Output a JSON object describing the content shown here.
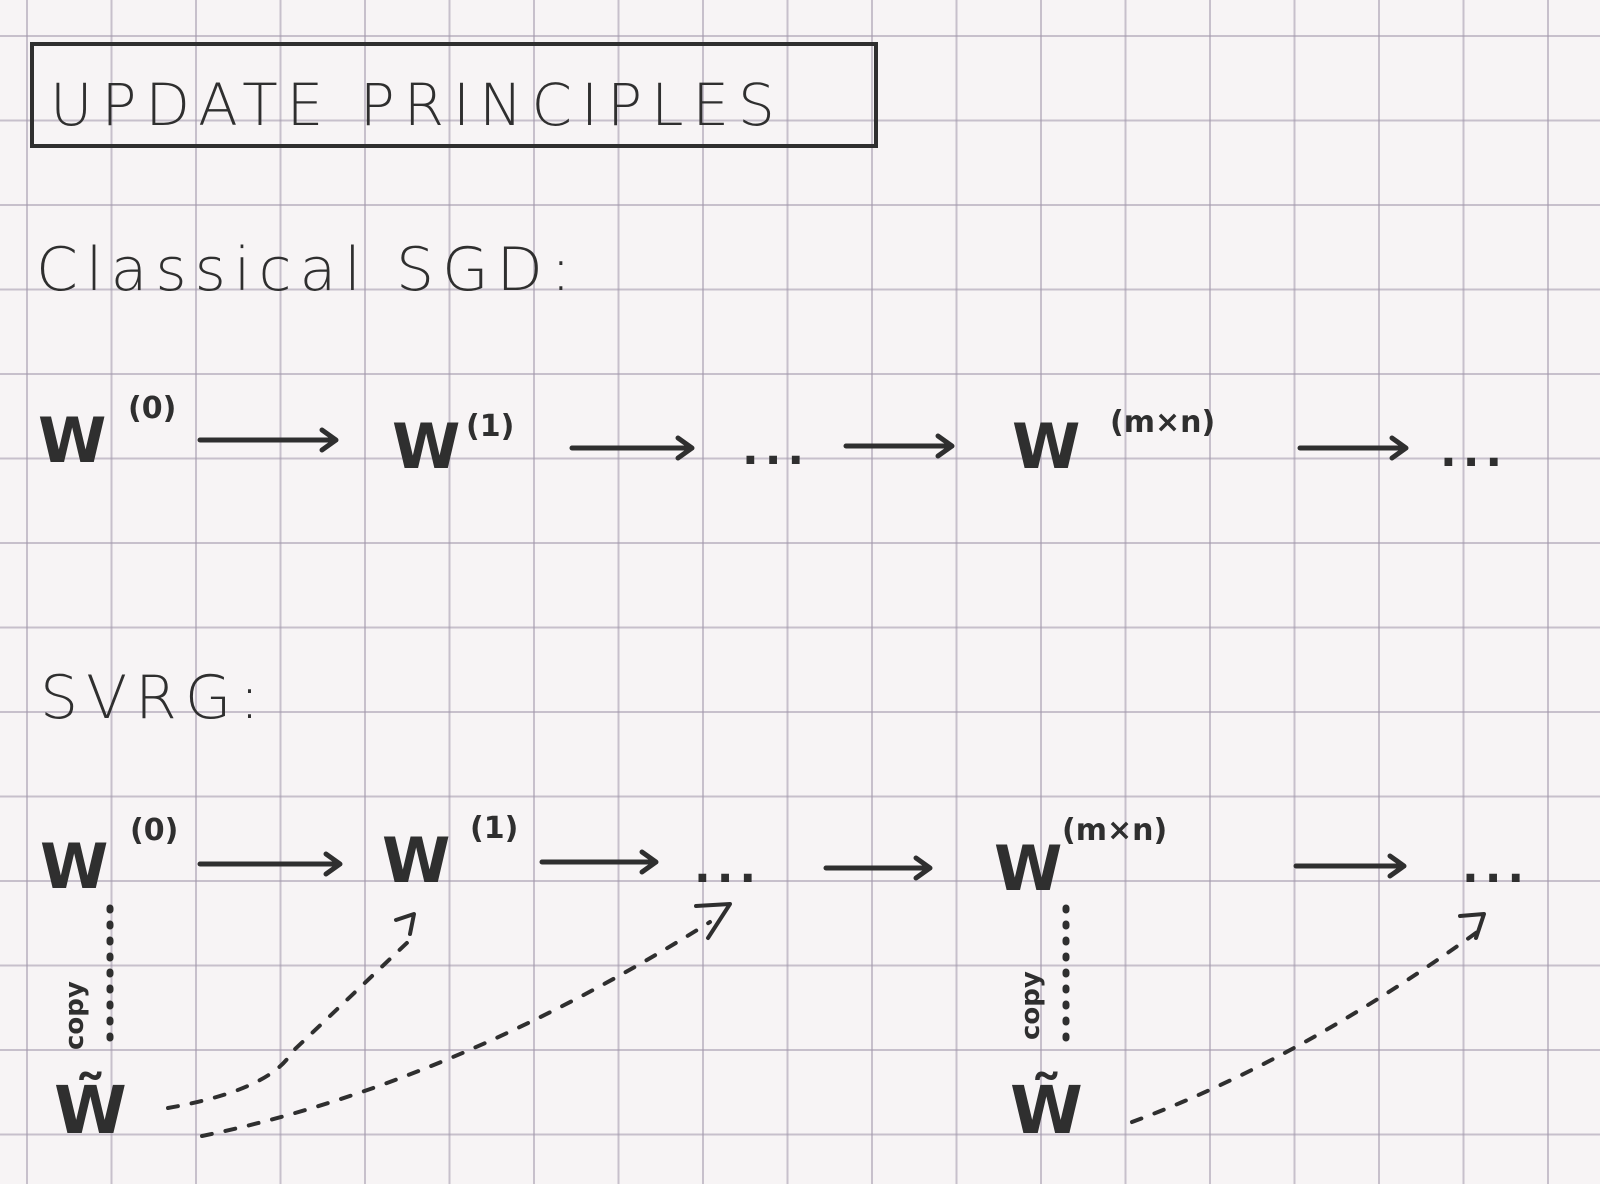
{
  "title": "UPDATE PRINCIPLES",
  "classical": {
    "heading": "Classical SGD:",
    "nodes": [
      {
        "base": "W",
        "sup": "(0)"
      },
      {
        "base": "W",
        "sup": "(1)"
      },
      {
        "base": "",
        "sup": "",
        "dots": "..."
      },
      {
        "base": "W",
        "sup": "(m×n)"
      },
      {
        "base": "",
        "sup": "",
        "dots": "..."
      }
    ]
  },
  "svrg": {
    "heading": "SVRG:",
    "nodes": [
      {
        "base": "W",
        "sup": "(0)"
      },
      {
        "base": "W",
        "sup": "(1)"
      },
      {
        "base": "",
        "sup": "",
        "dots": "..."
      },
      {
        "base": "W",
        "sup": "(m×n)"
      },
      {
        "base": "",
        "sup": "",
        "dots": "..."
      }
    ],
    "snapshot_symbol": "W̃",
    "copy_label": "copy"
  },
  "colors": {
    "ink": "#2f2f2f",
    "paper": "#f7f4f5",
    "grid": "#a096aa"
  }
}
